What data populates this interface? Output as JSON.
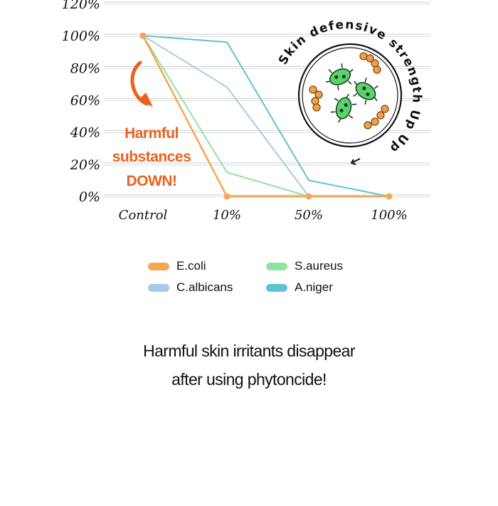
{
  "chart_data": {
    "type": "line",
    "title": "",
    "xlabel": "",
    "ylabel": "",
    "categories": [
      "Control",
      "10%",
      "50%",
      "100%"
    ],
    "y_ticks": [
      "0%",
      "20%",
      "40%",
      "60%",
      "80%",
      "100%",
      "120%"
    ],
    "ylim": [
      0,
      120
    ],
    "grid": true,
    "series": [
      {
        "name": "E.coli",
        "color": "#f5a653",
        "values": [
          100,
          0,
          0,
          0
        ],
        "markers": true
      },
      {
        "name": "C.albicans",
        "color": "#a9c9e8",
        "values": [
          100,
          68,
          0,
          0
        ],
        "markers": false
      },
      {
        "name": "S.aureus",
        "color": "#8fe3a2",
        "values": [
          100,
          15,
          0,
          0
        ],
        "markers": false
      },
      {
        "name": "A.niger",
        "color": "#5fc2d1",
        "values": [
          100,
          96,
          10,
          0
        ],
        "markers": false
      }
    ],
    "legend_placement": "bottom",
    "annotation_lines": [
      "Harmful",
      "substances",
      "DOWN!"
    ],
    "annotation_color": "#e8631e",
    "badge_text": "Skin defensive strength Up Up!",
    "badge_icons": [
      "petri-dish-icon",
      "bacteria-icon"
    ]
  },
  "caption_lines": [
    "Harmful skin irritants disappear",
    "after using phytoncide!"
  ]
}
